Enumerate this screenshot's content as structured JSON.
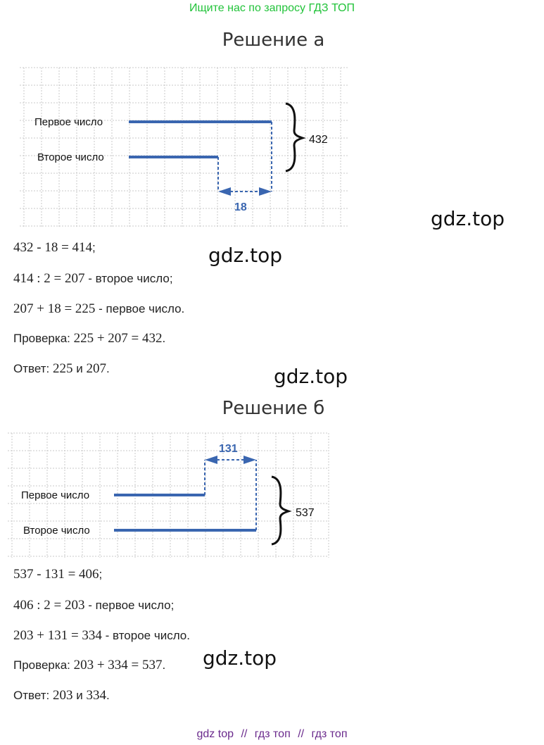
{
  "banner": "Ищите нас по запросу ГДЗ ТОП",
  "watermark": "gdz.top",
  "solution_a": {
    "title": "Решение а",
    "first_label": "Первое число",
    "second_label": "Второе число",
    "sum": "432",
    "difference": "18",
    "lines": [
      {
        "math": "432 - 18 = 414",
        "text": ";"
      },
      {
        "math": "414 : 2 = 207",
        "text": " - второе число;"
      },
      {
        "math": "207 + 18 = 225",
        "text": " - первое число."
      },
      {
        "prefix": "Проверка: ",
        "math": "225 + 207 = 432",
        "text": "."
      },
      {
        "prefix": "Ответ: ",
        "math": "225",
        "mid": " и ",
        "math2": "207",
        "text": "."
      }
    ]
  },
  "solution_b": {
    "title": "Решение б",
    "first_label": "Первое число",
    "second_label": "Второе число",
    "sum": "537",
    "difference": "131",
    "lines": [
      {
        "math": "537 - 131 = 406",
        "text": ";"
      },
      {
        "math": "406 : 2 = 203",
        "text": " - первое число;"
      },
      {
        "math": "203 + 131 = 334",
        "text": " - второе число."
      },
      {
        "prefix": "Проверка: ",
        "math": "203 + 334 = 537",
        "text": "."
      },
      {
        "prefix": "Ответ: ",
        "math": "203",
        "mid": " и ",
        "math2": "334",
        "text": "."
      }
    ]
  },
  "footer": {
    "part1": "gdz top",
    "sep1": "//",
    "part2": "гдз топ",
    "sep2": "//",
    "part3": "гдз топ"
  },
  "colors": {
    "banner": "#22c33a",
    "segment": "#3a66b0",
    "footer": "#6a2a8c"
  }
}
